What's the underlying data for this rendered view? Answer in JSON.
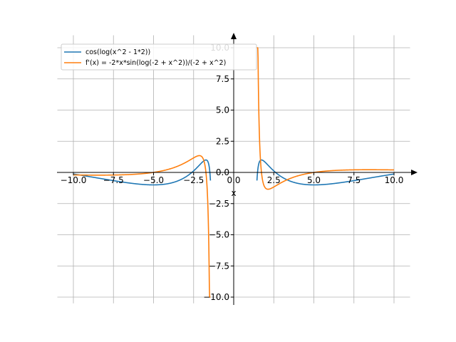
{
  "chart_data": {
    "type": "line",
    "xlabel": "x",
    "xlim": [
      -11.0,
      11.0
    ],
    "ylim": [
      -10.5,
      11.0
    ],
    "x_ticks": [
      "−10.0",
      "−7.5",
      "−5.0",
      "−2.5",
      "0.0",
      "2.5",
      "5.0",
      "7.5",
      "10.0"
    ],
    "y_ticks": [
      "−10.0",
      "−7.5",
      "−5.0",
      "−2.5",
      "0.0",
      "2.5",
      "5.0",
      "7.5",
      "10.0"
    ],
    "grid": true,
    "legend_position": "top-left",
    "colors": {
      "series1": "#1f77b4",
      "series2": "#ff7f0e",
      "grid": "#b0b0b0",
      "axis": "#000000"
    },
    "series": [
      {
        "name": "cos(log(x^2 - 1*2))",
        "function": "cos(log(x^2 - 2))",
        "domain": [
          [
            -10,
            -1.45
          ],
          [
            1.45,
            10
          ]
        ],
        "sample_points": [
          {
            "x": -10,
            "y": -0.175
          },
          {
            "x": -5,
            "y": -1.0
          },
          {
            "x": -1.7,
            "y": 0.97
          },
          {
            "x": 1.7,
            "y": 0.97
          },
          {
            "x": 5,
            "y": -1.0
          },
          {
            "x": 10,
            "y": -0.175
          }
        ]
      },
      {
        "name": "f'(x) = -2*x*sin(log(-2 + x^2))/(-2 + x^2)",
        "function": "-2*x*sin(log(x^2 - 2))/(x^2 - 2)",
        "domain": [
          [
            -10,
            -1.45
          ],
          [
            1.45,
            10
          ]
        ],
        "clip": [
          -10,
          10
        ],
        "sample_points": [
          {
            "x": -10,
            "y": -0.2
          },
          {
            "x": -2.1,
            "y": 1.3
          },
          {
            "x": -1.45,
            "y": -10.0
          },
          {
            "x": 1.45,
            "y": 9.6
          },
          {
            "x": 2.1,
            "y": -1.3
          },
          {
            "x": 10,
            "y": 0.2
          }
        ]
      }
    ]
  }
}
